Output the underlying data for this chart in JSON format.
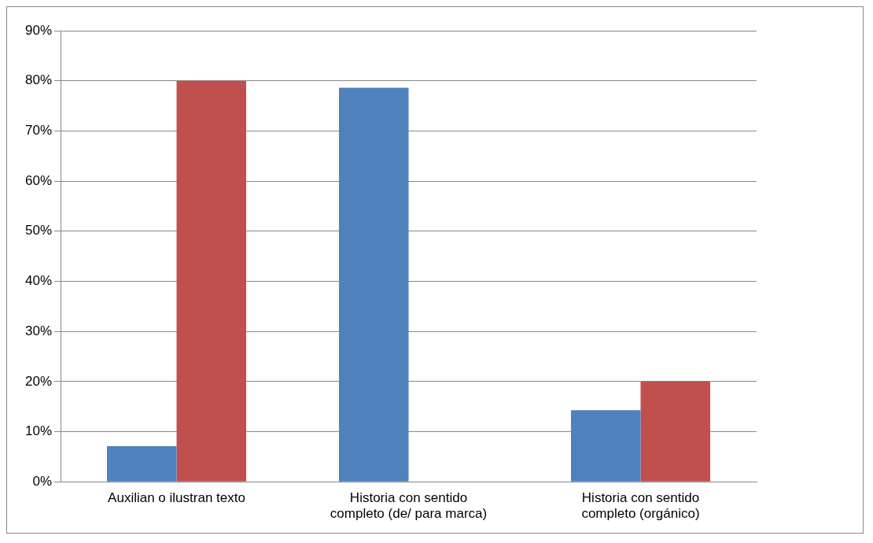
{
  "chart_data": {
    "type": "bar",
    "categories": [
      "Auxilian o ilustran texto",
      "Historia con sentido completo (de/ para marca)",
      "Historia con sentido completo (orgánico)"
    ],
    "series": [
      {
        "color": "#4f81bd",
        "values": [
          7.1,
          78.6,
          14.3
        ]
      },
      {
        "color": "#c0504d",
        "values": [
          80,
          0,
          20
        ]
      }
    ],
    "ylim": [
      0,
      90
    ],
    "yticks": [
      {
        "value": 0,
        "label": "0%"
      },
      {
        "value": 10,
        "label": "10%"
      },
      {
        "value": 20,
        "label": "20%"
      },
      {
        "value": 30,
        "label": "30%"
      },
      {
        "value": 40,
        "label": "40%"
      },
      {
        "value": 50,
        "label": "50%"
      },
      {
        "value": 60,
        "label": "60%"
      },
      {
        "value": 70,
        "label": "70%"
      },
      {
        "value": 80,
        "label": "80%"
      },
      {
        "value": 90,
        "label": "90%"
      }
    ],
    "grid": "y",
    "legend": false
  }
}
